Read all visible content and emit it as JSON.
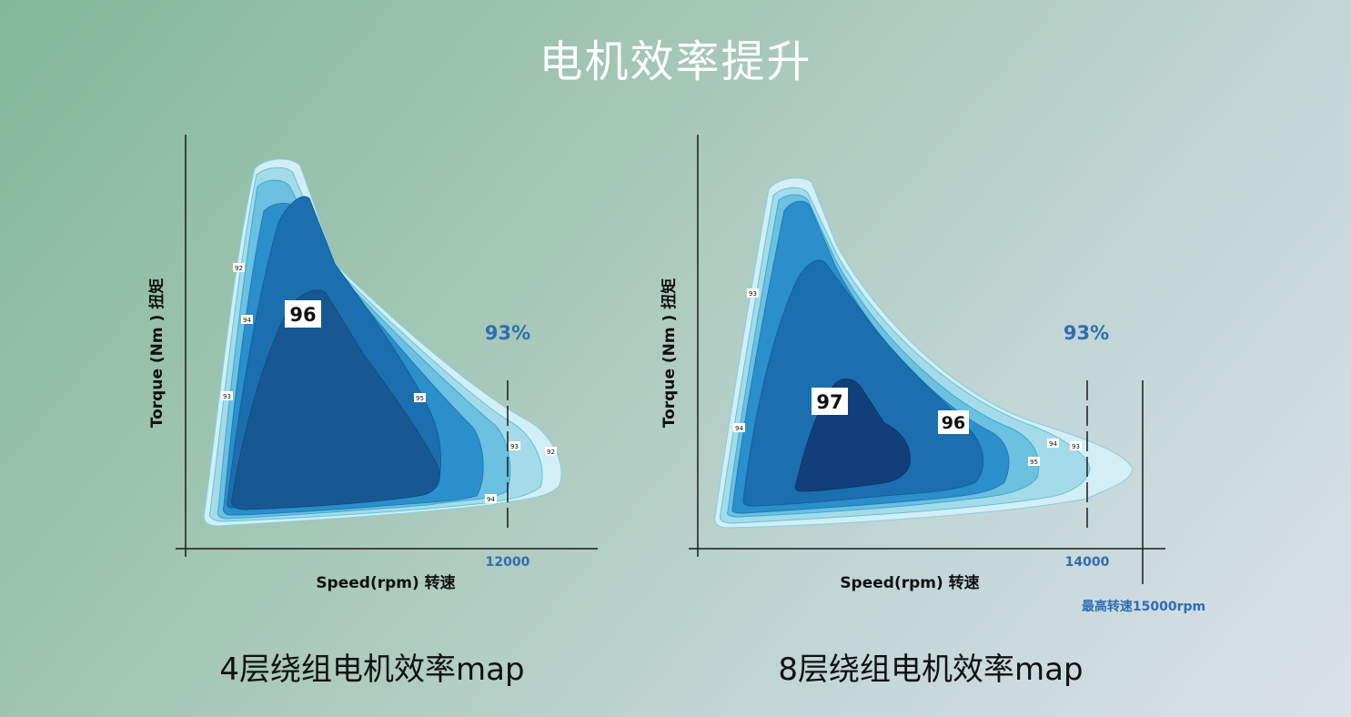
{
  "page": {
    "title": "电机效率提升"
  },
  "colors": {
    "axis": "#1a1a1a",
    "accent_text": "#2f6db0",
    "levels": [
      "#d3eef4",
      "#a5dbe9",
      "#6cc0e0",
      "#2a8fca",
      "#1b6fae",
      "#175892",
      "#123f7a"
    ]
  },
  "chart_data": [
    {
      "type": "contour",
      "xlabel": "Speed(rpm) 转速",
      "ylabel": "Torque (Nm ) 扭矩",
      "caption": "4层绕组电机效率map",
      "efficiency_note": "93%",
      "speed_marker": "12000",
      "max_speed_label": "",
      "contour_levels": [
        "92",
        "93",
        "94",
        "95",
        "96"
      ],
      "contour_labels": [
        {
          "text": "92",
          "kind": "small"
        },
        {
          "text": "94",
          "kind": "small"
        },
        {
          "text": "93",
          "kind": "small"
        },
        {
          "text": "95",
          "kind": "small"
        },
        {
          "text": "93",
          "kind": "small"
        },
        {
          "text": "92",
          "kind": "small"
        },
        {
          "text": "94",
          "kind": "small"
        },
        {
          "text": "96",
          "kind": "big"
        }
      ]
    },
    {
      "type": "contour",
      "xlabel": "Speed(rpm) 转速",
      "ylabel": "Torque (Nm ) 扭矩",
      "caption": "8层绕组电机效率map",
      "efficiency_note": "93%",
      "speed_marker": "14000",
      "max_speed_label": "最高转速15000rpm",
      "contour_levels": [
        "93",
        "94",
        "95",
        "96",
        "97"
      ],
      "contour_labels": [
        {
          "text": "93",
          "kind": "small"
        },
        {
          "text": "94",
          "kind": "small"
        },
        {
          "text": "95",
          "kind": "small"
        },
        {
          "text": "94",
          "kind": "small"
        },
        {
          "text": "93",
          "kind": "small"
        },
        {
          "text": "97",
          "kind": "big"
        },
        {
          "text": "96",
          "kind": "big"
        }
      ]
    }
  ]
}
